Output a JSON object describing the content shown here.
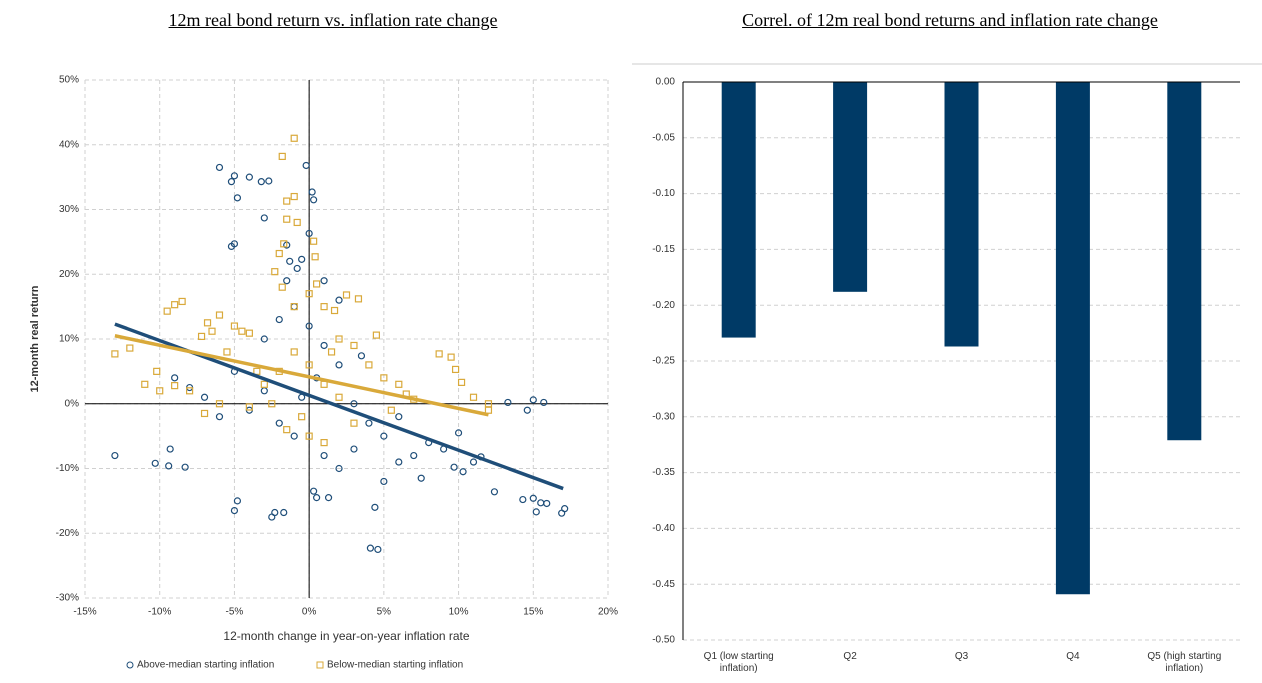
{
  "chart_data": [
    {
      "type": "scatter",
      "title": "12m real bond return vs. inflation rate change",
      "xlabel": "12-month change in year-on-year inflation rate",
      "ylabel": "12-month real return",
      "xlim": [
        -15,
        20
      ],
      "ylim": [
        -30,
        50
      ],
      "xticks": [
        {
          "value": -15,
          "label": "-15%"
        },
        {
          "value": -10,
          "label": "-10%"
        },
        {
          "value": -5,
          "label": "-5%"
        },
        {
          "value": 0,
          "label": "0%"
        },
        {
          "value": 5,
          "label": "5%"
        },
        {
          "value": 10,
          "label": "10%"
        },
        {
          "value": 15,
          "label": "15%"
        },
        {
          "value": 20,
          "label": "20%"
        }
      ],
      "yticks": [
        {
          "value": -30,
          "label": "-30%"
        },
        {
          "value": -20,
          "label": "-20%"
        },
        {
          "value": -10,
          "label": "-10%"
        },
        {
          "value": 0,
          "label": "0%"
        },
        {
          "value": 10,
          "label": "10%"
        },
        {
          "value": 20,
          "label": "20%"
        },
        {
          "value": 30,
          "label": "30%"
        },
        {
          "value": 40,
          "label": "40%"
        },
        {
          "value": 50,
          "label": "50%"
        }
      ],
      "grid": true,
      "legend": "bottom",
      "series": [
        {
          "name": "Above-median starting inflation",
          "color": "#1f4e79",
          "marker": "circle",
          "x": [
            -13,
            -10.3,
            -9.4,
            -9.3,
            -8.3,
            -6,
            -5.2,
            -5,
            -4.8,
            -4,
            -3.2,
            -2.7,
            -5,
            -5.2,
            -3,
            -0.2,
            0.2,
            0.3,
            -1.3,
            -0.8,
            -0.5,
            0,
            -1.5,
            -4.8,
            -5,
            -2.5,
            -2.3,
            -1.7,
            4.1,
            4.6,
            4.4,
            0.5,
            0.3,
            1.3,
            14.3,
            15,
            15.5,
            15.9,
            15.2,
            16.9,
            17.1,
            12.4,
            15,
            14.6,
            15.7,
            13.3,
            10,
            9.7,
            10.3,
            11,
            11.5,
            8,
            7,
            6,
            5,
            3,
            2,
            1,
            -1,
            -2,
            -3,
            -4,
            -6,
            -7,
            -5,
            -3,
            -2,
            -1,
            0,
            1,
            2,
            0.5,
            -0.5,
            3,
            4,
            6,
            -8,
            -9,
            2,
            1,
            -1.5,
            3.5,
            5,
            7.5,
            9
          ],
          "values": [
            -8,
            -9.2,
            -9.6,
            -7,
            -9.8,
            36.5,
            34.3,
            35.2,
            31.8,
            35,
            34.3,
            34.4,
            24.7,
            24.3,
            28.7,
            36.8,
            32.7,
            31.5,
            22,
            20.9,
            22.3,
            26.3,
            24.5,
            -15,
            -16.5,
            -17.5,
            -16.8,
            -16.8,
            -22.3,
            -22.5,
            -16,
            -14.5,
            -13.5,
            -14.5,
            -14.8,
            -14.6,
            -15.3,
            -15.4,
            -16.7,
            -16.9,
            -16.2,
            -13.6,
            0.6,
            -1,
            0.2,
            0.2,
            -4.5,
            -9.8,
            -10.5,
            -9,
            -8.2,
            -6,
            -8,
            -9,
            -5,
            -7,
            -10,
            -8,
            -5,
            -3,
            2,
            -1,
            -2,
            1,
            5,
            10,
            13,
            15,
            12,
            9,
            6,
            4,
            1,
            0,
            -3,
            -2,
            2.5,
            4,
            16,
            19,
            19,
            7.4,
            -12,
            -11.5,
            -7
          ],
          "trend": {
            "x": [
              -13,
              17
            ],
            "values": [
              12.3,
              -13.1
            ]
          }
        },
        {
          "name": "Below-median starting inflation",
          "color": "#d9a93a",
          "marker": "square",
          "x": [
            -13,
            -12,
            -10.2,
            -9.5,
            -9,
            -8.5,
            -9,
            -8,
            -7.2,
            -6.8,
            -6.5,
            -6,
            -5,
            -4.5,
            -4,
            -5.5,
            -7,
            -6,
            -4,
            -1,
            -1.8,
            -1.5,
            -1,
            -1.5,
            -0.8,
            0.3,
            0.4,
            -2.3,
            -1.7,
            -2,
            -1.8,
            -1,
            0,
            0.5,
            1,
            1.7,
            2.5,
            3.3,
            2,
            1.5,
            3,
            4,
            5,
            6,
            6.5,
            7,
            8.7,
            9.5,
            9.8,
            10.2,
            11,
            12,
            12,
            -2,
            -1,
            0,
            1,
            2,
            -0.5,
            -1.5,
            0,
            1,
            -2.5,
            -3,
            -3.5,
            4.5,
            5.5,
            3,
            -10,
            -11
          ],
          "values": [
            7.7,
            8.6,
            5,
            14.3,
            15.3,
            15.8,
            2.8,
            2,
            10.4,
            12.5,
            11.2,
            13.7,
            12,
            11.2,
            10.9,
            8,
            -1.5,
            0,
            -0.5,
            41,
            38.2,
            31.3,
            32,
            28.5,
            28,
            25.1,
            22.7,
            20.4,
            24.7,
            23.2,
            18,
            15,
            17,
            18.5,
            15,
            14.4,
            16.8,
            16.2,
            10,
            8,
            9,
            6,
            4,
            3,
            1.5,
            0.7,
            7.7,
            7.2,
            5.3,
            3.3,
            1,
            0,
            -1,
            5,
            8,
            6,
            3,
            1,
            -2,
            -4,
            -5,
            -6,
            0,
            3,
            5,
            10.6,
            -1,
            -3,
            2,
            3
          ],
          "trend": {
            "x": [
              -13,
              12
            ],
            "values": [
              10.5,
              -1.7
            ]
          }
        }
      ]
    },
    {
      "type": "bar",
      "title": "Correl. of 12m real bond returns and inflation rate change",
      "categories": [
        "Q1 (low starting inflation)",
        "Q2",
        "Q3",
        "Q4",
        "Q5 (high starting inflation)"
      ],
      "values": [
        -0.229,
        -0.188,
        -0.237,
        -0.459,
        -0.321
      ],
      "color": "#003a66",
      "ylim": [
        -0.5,
        0
      ],
      "yticks": [
        {
          "value": 0,
          "label": "0.00"
        },
        {
          "value": -0.05,
          "label": "-0.05"
        },
        {
          "value": -0.1,
          "label": "-0.10"
        },
        {
          "value": -0.15,
          "label": "-0.15"
        },
        {
          "value": -0.2,
          "label": "-0.20"
        },
        {
          "value": -0.25,
          "label": "-0.25"
        },
        {
          "value": -0.3,
          "label": "-0.30"
        },
        {
          "value": -0.35,
          "label": "-0.35"
        },
        {
          "value": -0.4,
          "label": "-0.40"
        },
        {
          "value": -0.45,
          "label": "-0.45"
        },
        {
          "value": -0.5,
          "label": "-0.50"
        }
      ],
      "grid": true
    }
  ]
}
